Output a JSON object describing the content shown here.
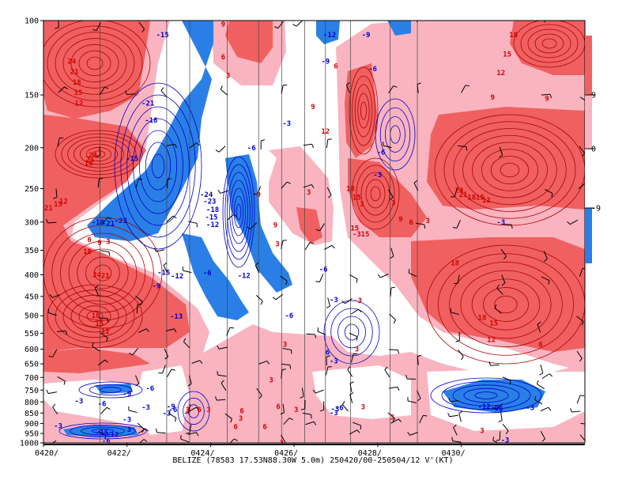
{
  "chart_data": {
    "type": "heatmap",
    "title": "",
    "caption": "BELIZE (78583 17.53N88.30W 5.0m) 250420/00-250504/12 V'(KT)",
    "xlabel": "",
    "ylabel": "",
    "x_ticks": [
      "0420/",
      "0422/",
      "0424/",
      "0426/",
      "0428/",
      "0430/"
    ],
    "y_ticks": [
      100,
      150,
      200,
      250,
      300,
      350,
      400,
      450,
      500,
      550,
      600,
      650,
      700,
      750,
      800,
      850,
      900,
      950,
      1000
    ],
    "y_axis": "pressure (hPa), log scale, 100 at top",
    "colorbar": {
      "ticks": [
        "9",
        "0",
        "-9"
      ],
      "colors": [
        "#f06060",
        "#f9b4c0",
        "#ffffff",
        "#2a7fe6"
      ]
    },
    "fill_colors": {
      "strong_positive": "#f06060",
      "positive": "#f9b4c0",
      "negative": "#2a7fe6"
    },
    "contour_colors": {
      "positive": "#d40000",
      "negative": "#0000cc"
    },
    "contour_labels": [
      {
        "v": "24",
        "t": 0.68,
        "p": 125,
        "s": "r"
      },
      {
        "v": "21",
        "t": 0.74,
        "p": 132,
        "s": "r"
      },
      {
        "v": "18",
        "t": 0.8,
        "p": 140,
        "s": "r"
      },
      {
        "v": "15",
        "t": 0.83,
        "p": 148,
        "s": "r"
      },
      {
        "v": "12",
        "t": 0.85,
        "p": 157,
        "s": "r"
      },
      {
        "v": "24",
        "t": 1.18,
        "p": 208,
        "s": "r"
      },
      {
        "v": "21",
        "t": 1.12,
        "p": 213,
        "s": "r"
      },
      {
        "v": "18",
        "t": 1.08,
        "p": 218,
        "s": "r"
      },
      {
        "v": "12",
        "t": 0.48,
        "p": 268,
        "s": "r"
      },
      {
        "v": "15",
        "t": 0.35,
        "p": 272,
        "s": "r"
      },
      {
        "v": "21",
        "t": 0.12,
        "p": 278,
        "s": "r"
      },
      {
        "v": "-18",
        "t": 1.3,
        "p": 300,
        "s": "b"
      },
      {
        "v": "-21",
        "t": 1.55,
        "p": 302,
        "s": "b"
      },
      {
        "v": "-23",
        "t": 1.85,
        "p": 298,
        "s": "b"
      },
      {
        "v": "6",
        "t": 1.1,
        "p": 330,
        "s": "r"
      },
      {
        "v": "9",
        "t": 1.34,
        "p": 336,
        "s": "r"
      },
      {
        "v": "3",
        "t": 1.55,
        "p": 334,
        "s": "r"
      },
      {
        "v": "18",
        "t": 1.05,
        "p": 352,
        "s": "r"
      },
      {
        "v": "24",
        "t": 1.28,
        "p": 400,
        "s": "r"
      },
      {
        "v": "21",
        "t": 1.48,
        "p": 402,
        "s": "r"
      },
      {
        "v": "18",
        "t": 1.25,
        "p": 500,
        "s": "r"
      },
      {
        "v": "15",
        "t": 1.34,
        "p": 522,
        "s": "r"
      },
      {
        "v": "12",
        "t": 1.48,
        "p": 545,
        "s": "r"
      },
      {
        "v": "-15",
        "t": 2.85,
        "p": 108,
        "s": "b"
      },
      {
        "v": "-21",
        "t": 2.5,
        "p": 157,
        "s": "b"
      },
      {
        "v": "-18",
        "t": 2.58,
        "p": 172,
        "s": "b"
      },
      {
        "v": "-15",
        "t": 2.12,
        "p": 212,
        "s": "b"
      },
      {
        "v": "-15",
        "t": 2.88,
        "p": 395,
        "s": "b"
      },
      {
        "v": "-12",
        "t": 3.2,
        "p": 403,
        "s": "b"
      },
      {
        "v": "-9",
        "t": 2.7,
        "p": 425,
        "s": "b"
      },
      {
        "v": "-13",
        "t": 3.18,
        "p": 502,
        "s": "b"
      },
      {
        "v": "9",
        "t": 4.3,
        "p": 102,
        "s": "r"
      },
      {
        "v": "6",
        "t": 4.3,
        "p": 122,
        "s": "r"
      },
      {
        "v": "3",
        "t": 4.42,
        "p": 135,
        "s": "r"
      },
      {
        "v": "-24",
        "t": 3.9,
        "p": 258,
        "s": "b"
      },
      {
        "v": "-23",
        "t": 3.98,
        "p": 268,
        "s": "b"
      },
      {
        "v": "-18",
        "t": 4.05,
        "p": 280,
        "s": "b"
      },
      {
        "v": "-15",
        "t": 4.02,
        "p": 292,
        "s": "b"
      },
      {
        "v": "-12",
        "t": 4.05,
        "p": 304,
        "s": "b"
      },
      {
        "v": "-6",
        "t": 4.98,
        "p": 200,
        "s": "b"
      },
      {
        "v": "-3",
        "t": 5.82,
        "p": 175,
        "s": "b"
      },
      {
        "v": "-6",
        "t": 3.92,
        "p": 396,
        "s": "b"
      },
      {
        "v": "-12",
        "t": 4.8,
        "p": 402,
        "s": "b"
      },
      {
        "v": "9",
        "t": 5.15,
        "p": 258,
        "s": "r"
      },
      {
        "v": "9",
        "t": 5.55,
        "p": 305,
        "s": "r"
      },
      {
        "v": "3",
        "t": 5.6,
        "p": 338,
        "s": "r"
      },
      {
        "v": "3",
        "t": 6.35,
        "p": 255,
        "s": "r"
      },
      {
        "v": "-6",
        "t": 6.7,
        "p": 388,
        "s": "b"
      },
      {
        "v": "-3",
        "t": 6.95,
        "p": 458,
        "s": "b"
      },
      {
        "v": "-6",
        "t": 5.88,
        "p": 500,
        "s": "b"
      },
      {
        "v": "-12",
        "t": 6.85,
        "p": 108,
        "s": "b"
      },
      {
        "v": "-9",
        "t": 6.75,
        "p": 125,
        "s": "b"
      },
      {
        "v": "6",
        "t": 7.0,
        "p": 128,
        "s": "r"
      },
      {
        "v": "9",
        "t": 6.45,
        "p": 160,
        "s": "r"
      },
      {
        "v": "12",
        "t": 6.75,
        "p": 183,
        "s": "r"
      },
      {
        "v": "18",
        "t": 7.35,
        "p": 250,
        "s": "r"
      },
      {
        "v": "15",
        "t": 7.5,
        "p": 262,
        "s": "r"
      },
      {
        "v": "3",
        "t": 7.62,
        "p": 272,
        "s": "r"
      },
      {
        "v": "15",
        "t": 7.45,
        "p": 310,
        "s": "r"
      },
      {
        "v": "15",
        "t": 7.7,
        "p": 320,
        "s": "r"
      },
      {
        "v": "-3",
        "t": 7.5,
        "p": 320,
        "s": "r"
      },
      {
        "v": "-9",
        "t": 7.72,
        "p": 108,
        "s": "b"
      },
      {
        "v": "-6",
        "t": 7.88,
        "p": 130,
        "s": "b"
      },
      {
        "v": "-6",
        "t": 8.08,
        "p": 205,
        "s": "b"
      },
      {
        "v": "-3",
        "t": 8.0,
        "p": 232,
        "s": "b"
      },
      {
        "v": "3",
        "t": 8.38,
        "p": 270,
        "s": "r"
      },
      {
        "v": "9",
        "t": 8.55,
        "p": 295,
        "s": "r"
      },
      {
        "v": "6",
        "t": 8.8,
        "p": 300,
        "s": "r"
      },
      {
        "v": "3",
        "t": 9.2,
        "p": 298,
        "s": "r"
      },
      {
        "v": "-3",
        "t": 7.52,
        "p": 460,
        "s": "r"
      },
      {
        "v": "18",
        "t": 11.25,
        "p": 108,
        "s": "r"
      },
      {
        "v": "15",
        "t": 11.1,
        "p": 120,
        "s": "r"
      },
      {
        "v": "12",
        "t": 10.95,
        "p": 133,
        "s": "r"
      },
      {
        "v": "9",
        "t": 10.75,
        "p": 152,
        "s": "r"
      },
      {
        "v": "9",
        "t": 12.05,
        "p": 153,
        "s": "r"
      },
      {
        "v": "24",
        "t": 9.95,
        "p": 252,
        "s": "r"
      },
      {
        "v": "21",
        "t": 10.05,
        "p": 258,
        "s": "r"
      },
      {
        "v": "18",
        "t": 10.25,
        "p": 262,
        "s": "r"
      },
      {
        "v": "15",
        "t": 10.45,
        "p": 262,
        "s": "r"
      },
      {
        "v": "12",
        "t": 10.6,
        "p": 266,
        "s": "r"
      },
      {
        "v": "-3",
        "t": 10.95,
        "p": 300,
        "s": "b"
      },
      {
        "v": "18",
        "t": 9.85,
        "p": 375,
        "s": "r"
      },
      {
        "v": "18",
        "t": 10.5,
        "p": 505,
        "s": "r"
      },
      {
        "v": "15",
        "t": 10.78,
        "p": 520,
        "s": "r"
      },
      {
        "v": "12",
        "t": 10.72,
        "p": 570,
        "s": "r"
      },
      {
        "v": "6",
        "t": 11.9,
        "p": 585,
        "s": "r"
      },
      {
        "v": "-3",
        "t": 0.85,
        "p": 795,
        "s": "b"
      },
      {
        "v": "-6",
        "t": 1.4,
        "p": 808,
        "s": "b"
      },
      {
        "v": "-9",
        "t": 2.0,
        "p": 765,
        "s": "b"
      },
      {
        "v": "-3",
        "t": 2.0,
        "p": 880,
        "s": "b"
      },
      {
        "v": "-3",
        "t": 0.35,
        "p": 912,
        "s": "b"
      },
      {
        "v": "-15",
        "t": 1.4,
        "p": 946,
        "s": "b"
      },
      {
        "v": "-12",
        "t": 1.65,
        "p": 956,
        "s": "b"
      },
      {
        "v": "-6",
        "t": 1.5,
        "p": 990,
        "s": "b"
      },
      {
        "v": "3",
        "t": 2.05,
        "p": 930,
        "s": "b"
      },
      {
        "v": "-6",
        "t": 2.55,
        "p": 743,
        "s": "b"
      },
      {
        "v": "-3",
        "t": 2.45,
        "p": 823,
        "s": "b"
      },
      {
        "v": "-9",
        "t": 3.05,
        "p": 820,
        "s": "b"
      },
      {
        "v": "-6",
        "t": 3.1,
        "p": 835,
        "s": "b"
      },
      {
        "v": "-3",
        "t": 2.95,
        "p": 850,
        "s": "b"
      },
      {
        "v": "3",
        "t": 3.45,
        "p": 835,
        "s": "r"
      },
      {
        "v": "6",
        "t": 3.73,
        "p": 835,
        "s": "r"
      },
      {
        "v": "3",
        "t": 3.95,
        "p": 835,
        "s": "r"
      },
      {
        "v": "6",
        "t": 4.75,
        "p": 840,
        "s": "r"
      },
      {
        "v": "3",
        "t": 4.72,
        "p": 875,
        "s": "r"
      },
      {
        "v": "6",
        "t": 4.6,
        "p": 915,
        "s": "r"
      },
      {
        "v": "6",
        "t": 5.3,
        "p": 915,
        "s": "r"
      },
      {
        "v": "3",
        "t": 5.45,
        "p": 710,
        "s": "r"
      },
      {
        "v": "6",
        "t": 5.62,
        "p": 820,
        "s": "r"
      },
      {
        "v": "3",
        "t": 6.05,
        "p": 835,
        "s": "r"
      },
      {
        "v": "3",
        "t": 5.7,
        "p": 1000,
        "s": "r"
      },
      {
        "v": "6",
        "t": 6.8,
        "p": 610,
        "s": "b"
      },
      {
        "v": "-3",
        "t": 6.95,
        "p": 640,
        "s": "b"
      },
      {
        "v": "-3",
        "t": 6.98,
        "p": 830,
        "s": "b"
      },
      {
        "v": "-3",
        "t": 6.95,
        "p": 848,
        "s": "b"
      },
      {
        "v": "-6",
        "t": 7.08,
        "p": 825,
        "s": "b"
      },
      {
        "v": "3",
        "t": 7.65,
        "p": 822,
        "s": "r"
      },
      {
        "v": "3",
        "t": 8.35,
        "p": 870,
        "s": "r"
      },
      {
        "v": "3",
        "t": 7.5,
        "p": 600,
        "s": "r"
      },
      {
        "v": "3",
        "t": 5.78,
        "p": 585,
        "s": "r"
      },
      {
        "v": "-12",
        "t": 10.55,
        "p": 820,
        "s": "b"
      },
      {
        "v": "-9",
        "t": 10.8,
        "p": 828,
        "s": "b"
      },
      {
        "v": "-6",
        "t": 10.9,
        "p": 830,
        "s": "b"
      },
      {
        "v": "-3",
        "t": 11.65,
        "p": 825,
        "s": "b"
      },
      {
        "v": "3",
        "t": 10.5,
        "p": 935,
        "s": "r"
      },
      {
        "v": "-3",
        "t": 11.05,
        "p": 985,
        "s": "b"
      }
    ]
  }
}
